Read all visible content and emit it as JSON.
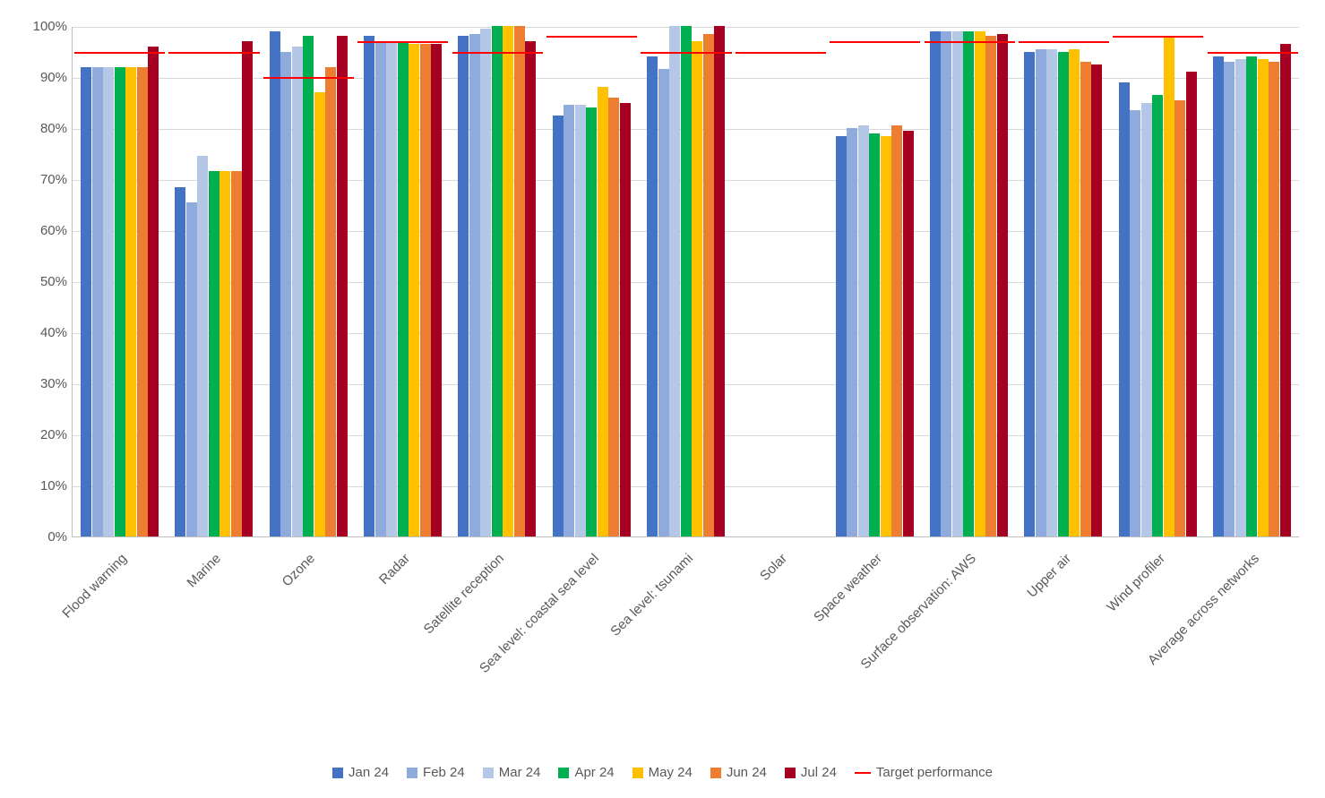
{
  "chart": {
    "type": "bar",
    "background_color": "#ffffff",
    "grid_color": "#d9d9d9",
    "axis_color": "#bfbfbf",
    "text_color": "#595959",
    "label_fontsize": 15,
    "ylim": [
      0,
      100
    ],
    "ytick_step": 10,
    "ytick_suffix": "%",
    "categories": [
      "Flood warning",
      "Marine",
      "Ozone",
      "Radar",
      "Satellite reception",
      "Sea level: coastal sea level",
      "Sea level: tsunami",
      "Solar",
      "Space weather",
      "Surface observation: AWS",
      "Upper air",
      "Wind profiler",
      "Average across networks"
    ],
    "series": [
      {
        "name": "Jan 24",
        "color": "#4472c4",
        "values": [
          92,
          68.5,
          99,
          98,
          98,
          82.5,
          94,
          0,
          78.5,
          99,
          95,
          89,
          94
        ]
      },
      {
        "name": "Feb 24",
        "color": "#8faadc",
        "values": [
          92,
          65.5,
          95,
          97,
          98.5,
          84.5,
          91.5,
          0,
          80,
          99,
          95.5,
          83.5,
          93
        ]
      },
      {
        "name": "Mar 24",
        "color": "#b4c7e7",
        "values": [
          92,
          74.5,
          96,
          97,
          99.5,
          84.5,
          100,
          0,
          80.5,
          99,
          95.5,
          85,
          93.5
        ]
      },
      {
        "name": "Apr 24",
        "color": "#00b050",
        "values": [
          92,
          71.5,
          98,
          97,
          100,
          84,
          100,
          0,
          79,
          99,
          95,
          86.5,
          94
        ]
      },
      {
        "name": "May 24",
        "color": "#ffc000",
        "values": [
          92,
          71.5,
          87,
          96.5,
          100,
          88,
          97,
          0,
          78.5,
          99,
          95.5,
          98,
          93.5
        ]
      },
      {
        "name": "Jun 24",
        "color": "#ed7d31",
        "values": [
          92,
          71.5,
          92,
          96.5,
          100,
          86,
          98.5,
          0,
          80.5,
          98,
          93,
          85.5,
          93
        ]
      },
      {
        "name": "Jul 24",
        "color": "#a50021",
        "values": [
          96,
          97,
          98,
          96.5,
          97,
          85,
          100,
          0,
          79.5,
          98.5,
          92.5,
          91,
          96.5
        ]
      }
    ],
    "target": {
      "name": "Target performance",
      "color": "#ff0000",
      "values": [
        95,
        95,
        90,
        97,
        95,
        98,
        95,
        95,
        97,
        97,
        97,
        98,
        95
      ]
    }
  }
}
